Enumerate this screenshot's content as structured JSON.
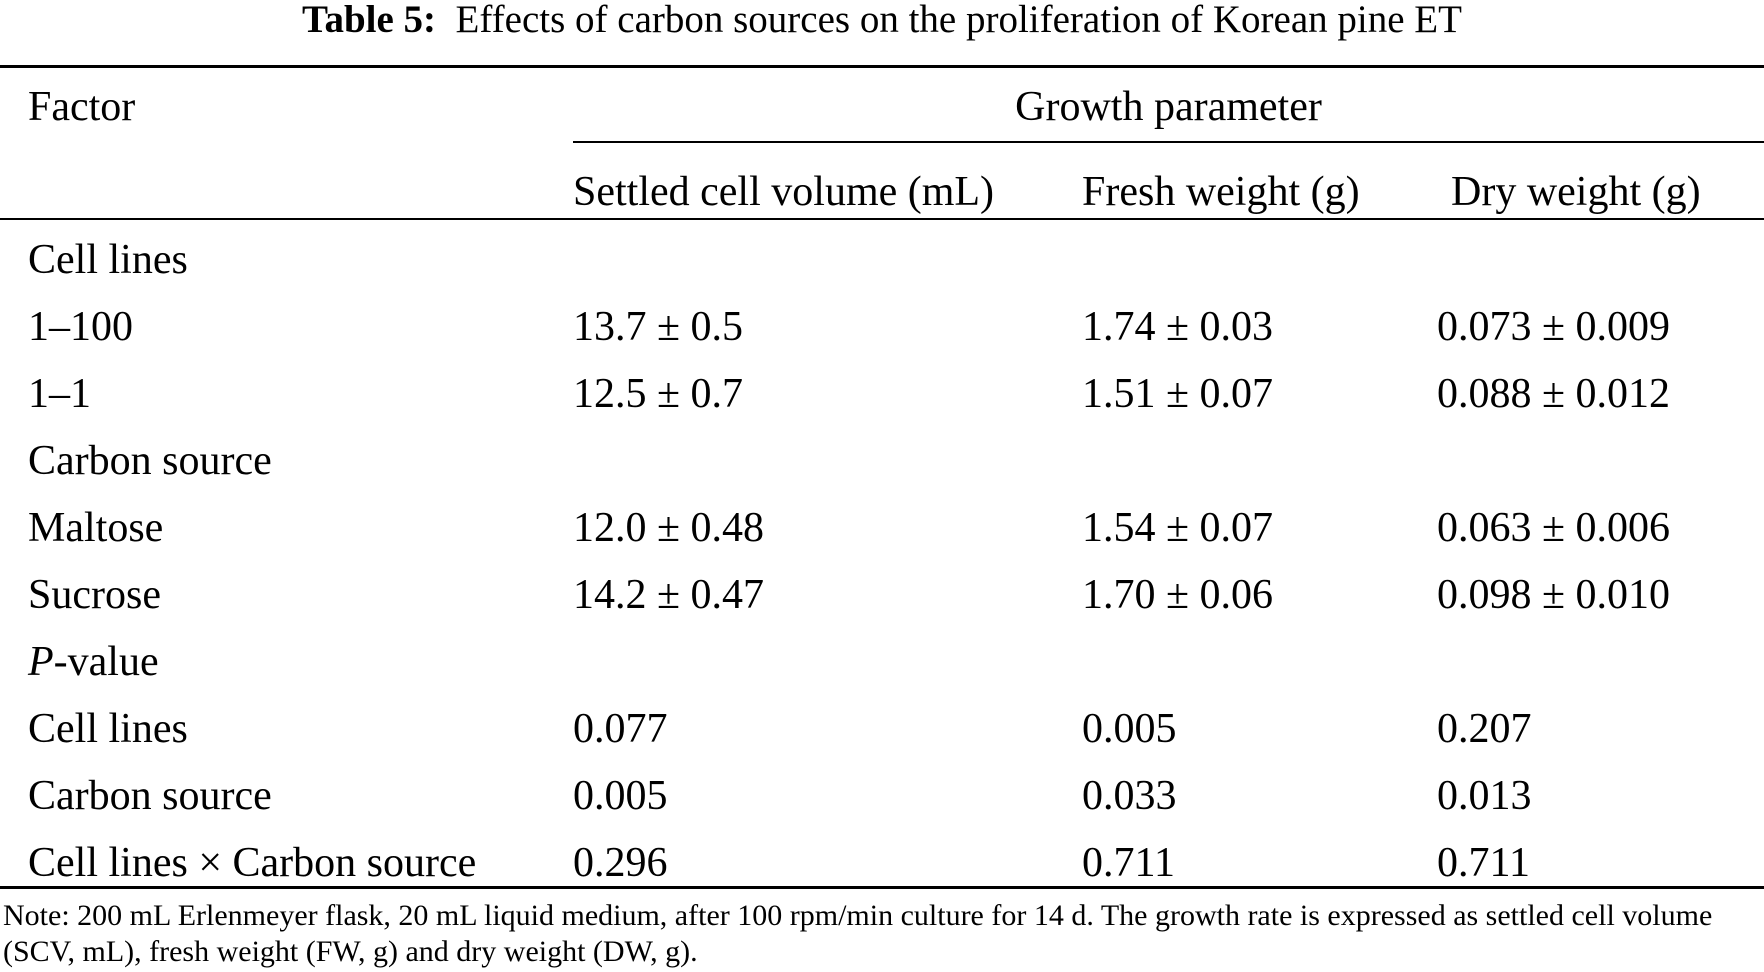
{
  "caption": {
    "label": "Table 5:",
    "text": "Effects of carbon sources on the proliferation of Korean pine ET"
  },
  "header": {
    "factor": "Factor",
    "group": "Growth parameter",
    "columns": [
      "Settled cell volume (mL)",
      "Fresh weight (g)",
      "Dry weight (g)"
    ]
  },
  "rows": [
    {
      "label": "Cell lines",
      "values": [
        "",
        "",
        ""
      ]
    },
    {
      "label": "1–100",
      "values": [
        "13.7 ± 0.5",
        "1.74 ± 0.03",
        "0.073 ± 0.009"
      ]
    },
    {
      "label": "1–1",
      "values": [
        "12.5 ± 0.7",
        "1.51 ± 0.07",
        "0.088 ± 0.012"
      ]
    },
    {
      "label": "Carbon source",
      "values": [
        "",
        "",
        ""
      ]
    },
    {
      "label": "Maltose",
      "values": [
        "12.0 ± 0.48",
        "1.54 ± 0.07",
        "0.063 ± 0.006"
      ]
    },
    {
      "label": "Sucrose",
      "values": [
        "14.2 ± 0.47",
        "1.70 ± 0.06",
        "0.098 ± 0.010"
      ]
    },
    {
      "label_italic": "P",
      "label": "-value",
      "values": [
        "",
        "",
        ""
      ]
    },
    {
      "label": "Cell lines",
      "values": [
        "0.077",
        "0.005",
        "0.207"
      ]
    },
    {
      "label": "Carbon source",
      "values": [
        "0.005",
        "0.033",
        "0.013"
      ]
    },
    {
      "label": "Cell lines × Carbon source",
      "values": [
        "0.296",
        "0.711",
        "0.711"
      ]
    }
  ],
  "note": "Note: 200 mL Erlenmeyer flask, 20 mL liquid medium, after 100 rpm/min culture for 14 d. The growth rate is expressed as settled cell volume (SCV, mL), fresh weight (FW, g) and dry weight (DW, g)."
}
